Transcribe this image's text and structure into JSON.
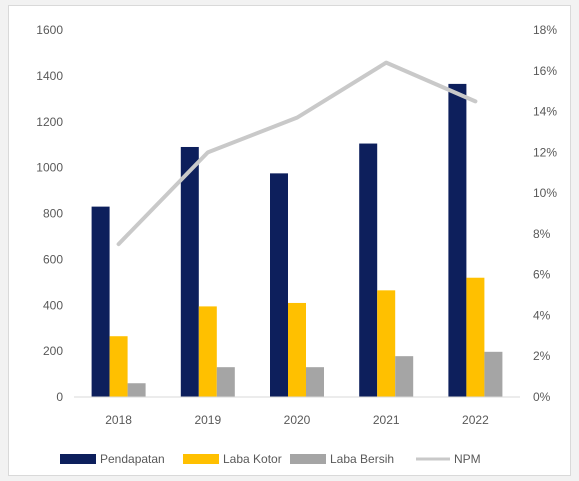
{
  "chart_data": {
    "type": "bar",
    "categories": [
      "2018",
      "2019",
      "2020",
      "2021",
      "2022"
    ],
    "series": [
      {
        "name": "Pendapatan",
        "type": "bar",
        "axis": "left",
        "color": "#0d1f5c",
        "values": [
          830,
          1090,
          975,
          1105,
          1365
        ]
      },
      {
        "name": "Laba Kotor",
        "type": "bar",
        "axis": "left",
        "color": "#ffc000",
        "values": [
          265,
          395,
          410,
          465,
          520
        ]
      },
      {
        "name": "Laba Bersih",
        "type": "bar",
        "axis": "left",
        "color": "#a5a5a5",
        "values": [
          60,
          130,
          130,
          178,
          197
        ]
      },
      {
        "name": "NPM",
        "type": "line",
        "axis": "right",
        "color": "#c9c9c9",
        "values": [
          7.5,
          12.0,
          13.7,
          16.4,
          14.5
        ]
      }
    ],
    "y_left": {
      "min": 0,
      "max": 1600,
      "step": 200
    },
    "y_right": {
      "min": 0,
      "max": 18,
      "step": 2,
      "unit": "%"
    },
    "grid": false,
    "legend_position": "bottom",
    "legend": [
      "Pendapatan",
      "Laba Kotor",
      "Laba Bersih",
      "NPM"
    ]
  }
}
